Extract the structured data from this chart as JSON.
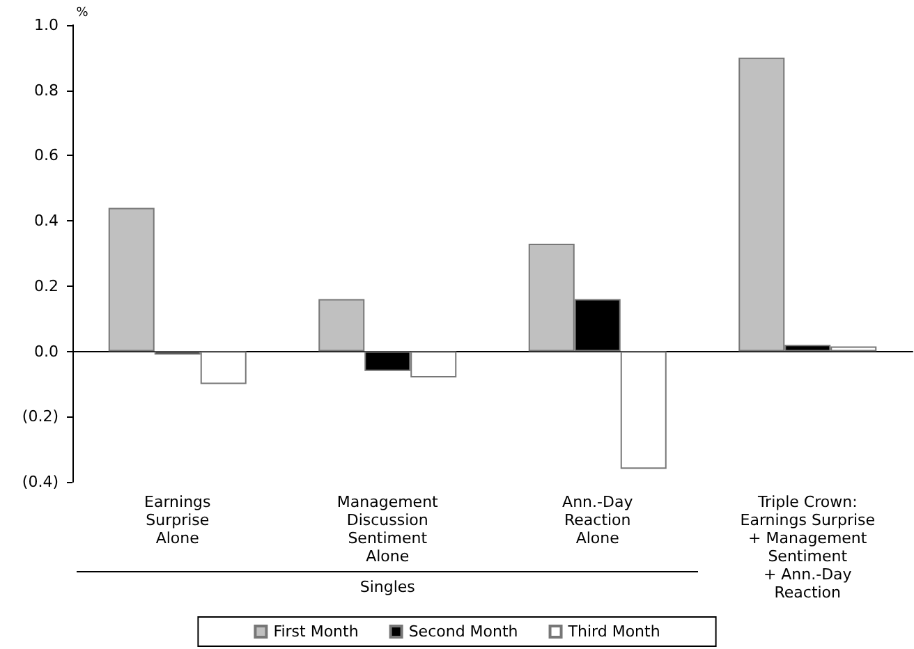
{
  "chart_data": {
    "type": "bar",
    "ylabel": "%",
    "categories": [
      "Earnings\nSurprise\nAlone",
      "Management\nDiscussion\nSentiment\nAlone",
      "Ann.-Day\nReaction\nAlone",
      "Triple Crown:\nEarnings Surprise\n+ Management\nSentiment\n+ Ann.-Day\nReaction"
    ],
    "series": [
      {
        "name": "First Month",
        "color": "#c0c0c0",
        "values": [
          0.44,
          0.16,
          0.33,
          0.9
        ]
      },
      {
        "name": "Second Month",
        "color": "#000000",
        "values": [
          -0.01,
          -0.06,
          0.16,
          0.02
        ]
      },
      {
        "name": "Third Month",
        "color": "#ffffff",
        "values": [
          -0.1,
          -0.08,
          -0.36,
          0.015
        ]
      }
    ],
    "ylim": [
      -0.4,
      1.0
    ],
    "yticks": [
      {
        "value": -0.4,
        "label": "(0.4)"
      },
      {
        "value": -0.2,
        "label": "(0.2)"
      },
      {
        "value": 0,
        "label": "0.0"
      },
      0.2,
      0.4,
      0.6,
      0.8,
      {
        "value": 1.0,
        "label": "1.0"
      }
    ],
    "annotations": [
      "Singles"
    ],
    "legend": "bottom"
  }
}
